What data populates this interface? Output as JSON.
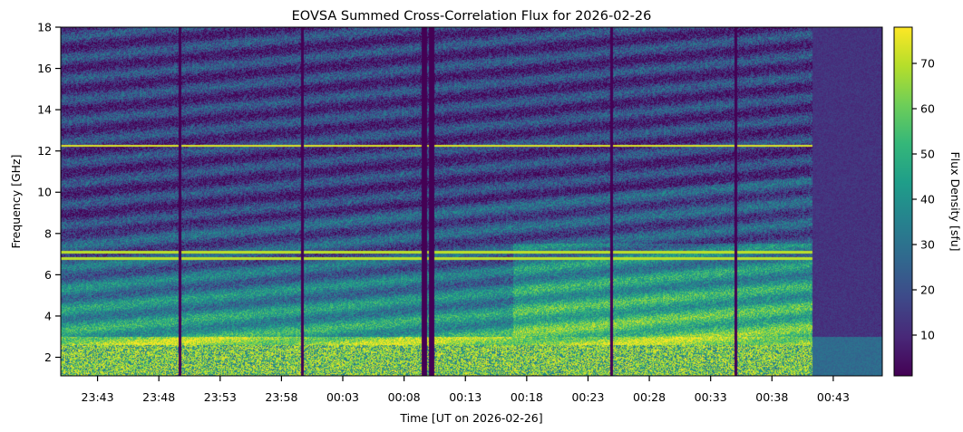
{
  "chart_data": {
    "type": "heatmap",
    "title": "EOVSA Summed Cross-Correlation Flux for 2026-02-26",
    "xlabel": "Time [UT on 2026-02-26]",
    "ylabel": "Frequency [GHz]",
    "colorbar_label": "Flux Density [sfu]",
    "colormap": "viridis",
    "colormap_stops": [
      "#440154",
      "#482878",
      "#3e4989",
      "#31688e",
      "#26828e",
      "#1f9e89",
      "#35b779",
      "#6ece58",
      "#b5de2b",
      "#fde725"
    ],
    "x_start": "23:40",
    "x_end": "00:47",
    "x_tick_labels": [
      "23:43",
      "23:48",
      "23:53",
      "23:58",
      "00:03",
      "00:08",
      "00:13",
      "00:18",
      "00:23",
      "00:28",
      "00:33",
      "00:38",
      "00:43"
    ],
    "y_range": [
      1.1,
      18
    ],
    "y_ticks": [
      2,
      4,
      6,
      8,
      10,
      12,
      14,
      16,
      18
    ],
    "colorbar_range": [
      1,
      78
    ],
    "colorbar_ticks": [
      10,
      20,
      30,
      40,
      50,
      60,
      70
    ],
    "rfi_bands_ghz": [
      12.25,
      7.1,
      6.8
    ],
    "data_gaps_ut": [
      "23:49.7",
      "23:59.7",
      "00:09.6",
      "00:10.2",
      "00:24.9",
      "00:35.0"
    ]
  }
}
